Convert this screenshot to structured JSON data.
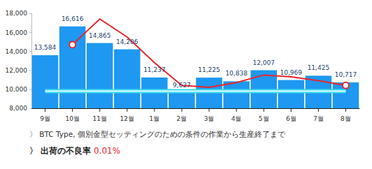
{
  "chart_data": {
    "type": "bar",
    "categories": [
      "9월",
      "10월",
      "11월",
      "12월",
      "1월",
      "2월",
      "3월",
      "4월",
      "5월",
      "6월",
      "7월",
      "8월"
    ],
    "ylim": [
      8000,
      18000
    ],
    "yticks": [
      {
        "value": 8000,
        "label": "8,000"
      },
      {
        "value": 10000,
        "label": "10,000"
      },
      {
        "value": 12000,
        "label": "12,000"
      },
      {
        "value": 14000,
        "label": "14,000"
      },
      {
        "value": 16000,
        "label": "16,000"
      },
      {
        "value": 18000,
        "label": "18,000"
      }
    ],
    "grid": false,
    "series": [
      {
        "type": "bar",
        "color": "#1e98f0",
        "data_labels": true,
        "values": [
          13584,
          16616,
          14865,
          14206,
          11237,
          9627,
          11225,
          10838,
          12007,
          10969,
          11425,
          10717
        ],
        "value_labels": [
          "13,584",
          "16,616",
          "14,865",
          "14,206",
          "11,237",
          "9,627",
          "11,225",
          "10,838",
          "12,007",
          "10,969",
          "11,425",
          "10,717"
        ]
      },
      {
        "type": "line",
        "color": "#e8262b",
        "marker": "circle",
        "values": [
          null,
          14700,
          17400,
          15500,
          12800,
          10400,
          10200,
          10700,
          11500,
          11300,
          10900,
          10400
        ]
      },
      {
        "type": "line",
        "color": "#3ddcf0",
        "line_style": "double",
        "values": [
          9800,
          9800,
          9800,
          9800,
          9800,
          9800,
          9800,
          9800,
          9800,
          9800,
          9800,
          9800
        ]
      }
    ],
    "annotations": [
      "〉 BTC Type, 個別金型セッティングのための条件の作業から生産終了まで",
      "〉 出荷の不良率",
      "0.01%"
    ]
  }
}
